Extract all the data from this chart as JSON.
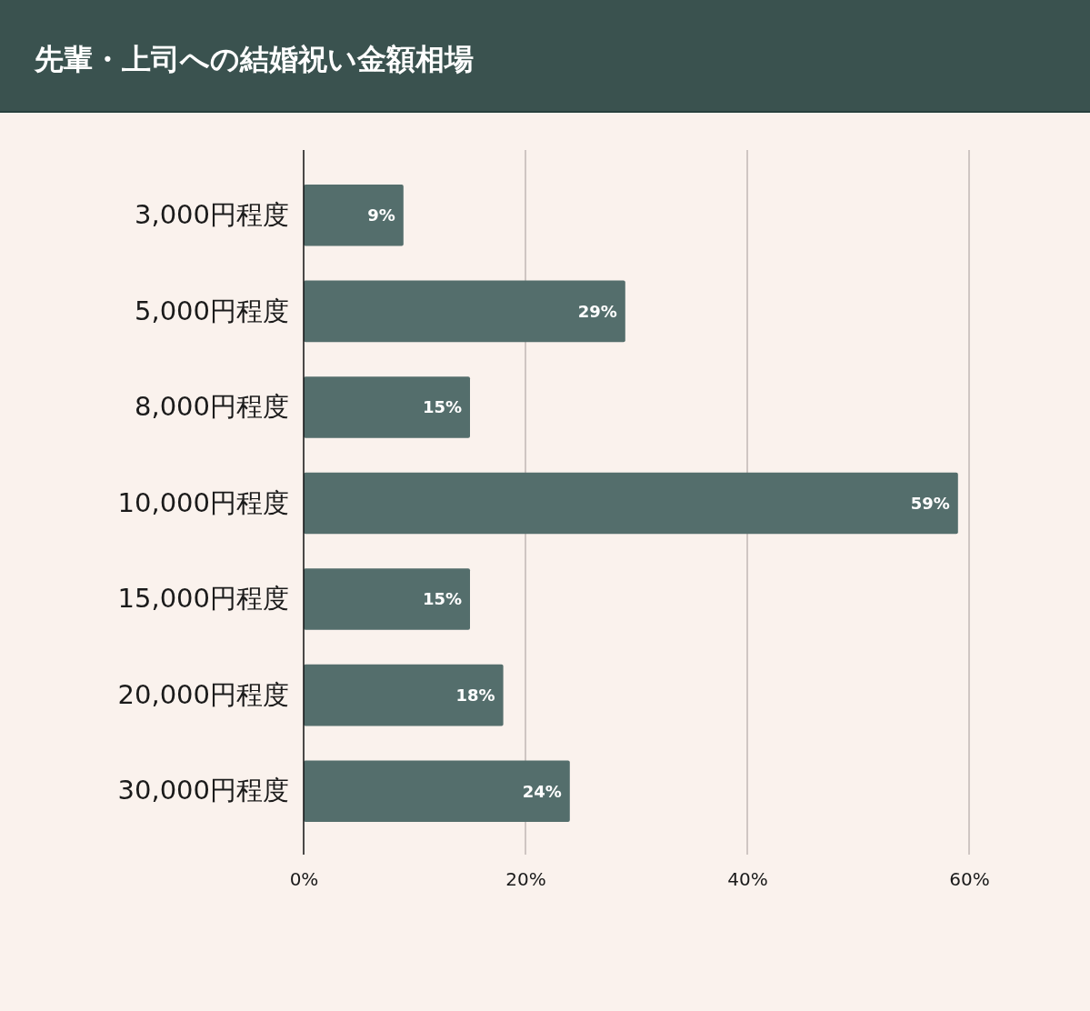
{
  "chart_data": {
    "type": "bar",
    "orientation": "horizontal",
    "title": "先輩・上司への結婚祝い金額相場",
    "categories": [
      "3,000円程度",
      "5,000円程度",
      "8,000円程度",
      "10,000円程度",
      "15,000円程度",
      "20,000円程度",
      "30,000円程度"
    ],
    "values": [
      9,
      29,
      15,
      59,
      15,
      18,
      24
    ],
    "value_labels": [
      "9%",
      "29%",
      "15%",
      "59%",
      "15%",
      "18%",
      "24%"
    ],
    "color": "#546e6c",
    "xlim": [
      0,
      60
    ],
    "xticks": [
      {
        "value": 0,
        "label": "0%"
      },
      {
        "value": 20,
        "label": "20%"
      },
      {
        "value": 40,
        "label": "40%"
      },
      {
        "value": 60,
        "label": "60%"
      }
    ],
    "grid": "x"
  }
}
